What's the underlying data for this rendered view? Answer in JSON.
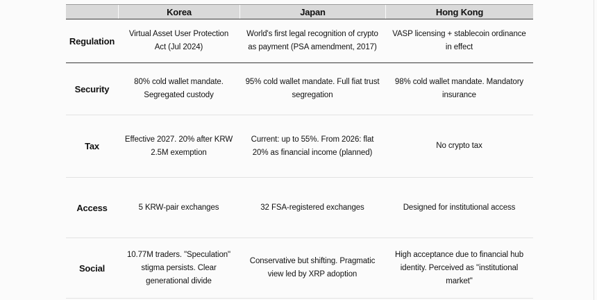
{
  "table": {
    "columns": [
      "Korea",
      "Japan",
      "Hong Kong"
    ],
    "rows": [
      {
        "label": "Regulation",
        "cells": [
          "Virtual Asset User Protection Act (Jul 2024)",
          "World's first legal recognition of crypto as payment (PSA amendment, 2017)",
          "VASP licensing + stablecoin ordinance in effect"
        ]
      },
      {
        "label": "Security",
        "cells": [
          "80% cold wallet mandate. Segregated custody",
          "95% cold wallet mandate. Full fiat trust segregation",
          "98% cold wallet mandate. Mandatory insurance"
        ]
      },
      {
        "label": "Tax",
        "cells": [
          "Effective 2027. 20% after KRW 2.5M exemption",
          "Current: up to 55%. From 2026: flat 20% as financial income (planned)",
          "No crypto tax"
        ]
      },
      {
        "label": "Access",
        "cells": [
          "5 KRW-pair exchanges",
          "32 FSA-registered exchanges",
          "Designed for institutional access"
        ]
      },
      {
        "label": "Social",
        "cells": [
          "10.77M traders. \"Speculation\" stigma persists. Clear generational divide",
          "Conservative but shifting. Pragmatic view led by XRP adoption",
          "High acceptance due to financial hub identity. Perceived as \"institutional market\""
        ]
      }
    ]
  },
  "colors": {
    "header_bg": "#d9d9d9",
    "border_dark": "#3a3a3a",
    "border_light": "#e2e2e2",
    "page_bg": "#fbfbfb",
    "text": "#111111"
  }
}
